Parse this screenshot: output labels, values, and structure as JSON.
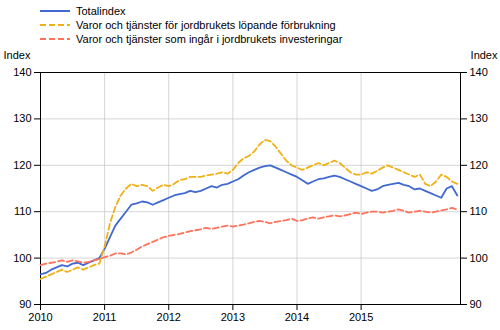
{
  "chart_data": {
    "type": "line",
    "ylabel": "Index",
    "y2label": "Index",
    "x": [
      2010,
      2010.083333,
      2010.166667,
      2010.25,
      2010.333333,
      2010.416667,
      2010.5,
      2010.583333,
      2010.666667,
      2010.75,
      2010.833333,
      2010.916667,
      2011,
      2011.083333,
      2011.166667,
      2011.25,
      2011.333333,
      2011.416667,
      2011.5,
      2011.583333,
      2011.666667,
      2011.75,
      2011.833333,
      2011.916667,
      2012,
      2012.083333,
      2012.166667,
      2012.25,
      2012.333333,
      2012.416667,
      2012.5,
      2012.583333,
      2012.666667,
      2012.75,
      2012.833333,
      2012.916667,
      2013,
      2013.083333,
      2013.166667,
      2013.25,
      2013.333333,
      2013.416667,
      2013.5,
      2013.583333,
      2013.666667,
      2013.75,
      2013.833333,
      2013.916667,
      2014,
      2014.083333,
      2014.166667,
      2014.25,
      2014.333333,
      2014.416667,
      2014.5,
      2014.583333,
      2014.666667,
      2014.75,
      2014.833333,
      2014.916667,
      2015,
      2015.083333,
      2015.166667,
      2015.25,
      2015.333333,
      2015.416667,
      2015.5,
      2015.583333,
      2015.666667,
      2015.75,
      2015.833333,
      2015.916667,
      2016,
      2016.083333,
      2016.166667,
      2016.25,
      2016.333333,
      2016.416667,
      2016.5
    ],
    "series": [
      {
        "name": "Totalindex",
        "line_style": "solid",
        "values": [
          96.5,
          96.8,
          97.5,
          98.0,
          98.5,
          98.2,
          98.8,
          99.0,
          98.5,
          99.0,
          99.5,
          100.0,
          102.0,
          104.5,
          107.0,
          108.5,
          110.0,
          111.5,
          111.8,
          112.2,
          112.0,
          111.5,
          112.0,
          112.5,
          113.0,
          113.5,
          113.8,
          114.0,
          114.5,
          114.2,
          114.5,
          115.0,
          115.5,
          115.2,
          115.8,
          116.0,
          116.5,
          117.0,
          117.8,
          118.5,
          119.0,
          119.5,
          119.8,
          120.0,
          119.5,
          119.0,
          118.5,
          118.0,
          117.5,
          116.8,
          116.0,
          116.5,
          117.0,
          117.2,
          117.5,
          117.8,
          117.5,
          117.0,
          116.5,
          116.0,
          115.5,
          115.0,
          114.5,
          114.8,
          115.5,
          115.8,
          116.0,
          116.2,
          115.8,
          115.5,
          114.8,
          115.0,
          114.5,
          114.0,
          113.5,
          113.0,
          115.0,
          115.5,
          113.5
        ]
      },
      {
        "name": "Varor och tjänster för jordbrukets löpande förbrukning",
        "line_style": "dashed",
        "values": [
          95.5,
          96.0,
          96.5,
          97.0,
          97.5,
          97.0,
          97.5,
          98.0,
          97.5,
          98.0,
          98.5,
          98.8,
          102.5,
          107.5,
          111.0,
          113.5,
          115.0,
          116.0,
          115.5,
          115.8,
          115.5,
          114.5,
          115.2,
          115.8,
          115.5,
          116.0,
          116.8,
          117.0,
          117.5,
          117.5,
          117.5,
          117.8,
          118.0,
          118.2,
          118.5,
          118.2,
          119.0,
          120.5,
          121.5,
          122.0,
          123.0,
          124.5,
          125.5,
          125.2,
          124.0,
          122.5,
          121.0,
          120.0,
          119.5,
          119.0,
          119.5,
          120.0,
          120.5,
          120.0,
          120.5,
          121.0,
          120.5,
          119.5,
          118.5,
          118.0,
          118.0,
          118.5,
          118.2,
          118.8,
          119.5,
          120.0,
          119.5,
          119.0,
          118.5,
          118.0,
          117.5,
          118.0,
          116.0,
          115.5,
          116.5,
          118.0,
          117.5,
          116.5,
          116.0
        ]
      },
      {
        "name": "Varor och tjänster som ingår i jordbrukets investeringar",
        "line_style": "dashed",
        "values": [
          98.5,
          98.8,
          99.0,
          99.2,
          99.5,
          99.2,
          99.5,
          99.3,
          99.0,
          99.2,
          99.5,
          99.8,
          100.2,
          100.5,
          101.0,
          101.0,
          100.8,
          101.2,
          101.8,
          102.5,
          103.0,
          103.5,
          104.0,
          104.5,
          104.8,
          105.0,
          105.2,
          105.5,
          105.8,
          106.0,
          106.2,
          106.5,
          106.3,
          106.5,
          106.8,
          107.0,
          106.8,
          107.0,
          107.2,
          107.5,
          107.8,
          108.0,
          107.8,
          107.5,
          107.8,
          108.0,
          108.2,
          108.5,
          108.0,
          108.2,
          108.5,
          108.8,
          108.5,
          108.8,
          109.0,
          109.2,
          109.0,
          109.2,
          109.5,
          109.8,
          109.5,
          109.8,
          110.0,
          110.0,
          109.8,
          110.0,
          110.2,
          110.5,
          110.2,
          109.8,
          110.0,
          110.2,
          110.0,
          109.8,
          110.0,
          110.3,
          110.5,
          110.8,
          110.5
        ]
      }
    ],
    "xlim": [
      2010,
      2016.55
    ],
    "xticks": [
      2010,
      2011,
      2012,
      2013,
      2014,
      2015
    ],
    "ylim": [
      90,
      140
    ],
    "yticks": [
      90,
      100,
      110,
      120,
      130,
      140
    ],
    "y2lim": [
      90,
      140
    ],
    "y2ticks": [
      90,
      100,
      110,
      120,
      130,
      140
    ],
    "grid": true,
    "legend": "upper left"
  }
}
